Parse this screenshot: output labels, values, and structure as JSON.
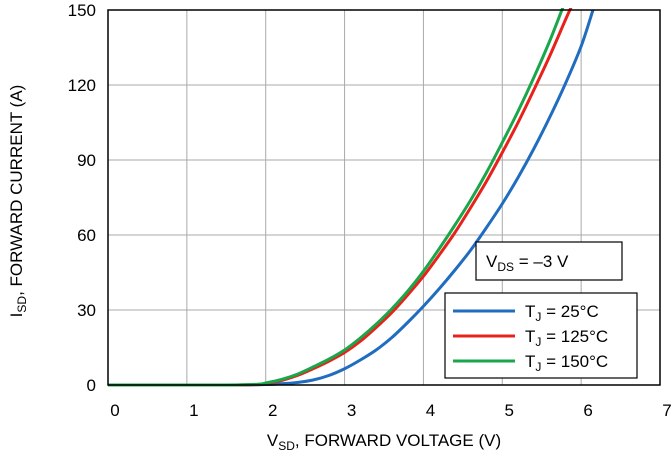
{
  "chart_data": {
    "type": "line",
    "title": "",
    "xlabel": {
      "main": "V",
      "sub": "SD",
      "rest": ", FORWARD VOLTAGE (V)"
    },
    "ylabel": {
      "main": "I",
      "sub": "SD",
      "rest": ", FORWARD CURRENT (A)"
    },
    "xlim": [
      0,
      7
    ],
    "ylim": [
      0,
      150
    ],
    "xticks": [
      0,
      1,
      2,
      3,
      4,
      5,
      6,
      7
    ],
    "yticks": [
      0,
      30,
      60,
      90,
      120,
      150
    ],
    "grid": true,
    "annotation": {
      "main": "V",
      "sub": "DS",
      "rest": " =  –3 V"
    },
    "legend_position": "bottom-right",
    "series": [
      {
        "label": {
          "main": "T",
          "sub": "J",
          "rest": " = 25°C"
        },
        "color": "#1f6cc0",
        "x": [
          0,
          1.5,
          2.0,
          2.2,
          2.4,
          2.6,
          2.8,
          3.0,
          3.2,
          3.4,
          3.6,
          3.8,
          4.0,
          4.2,
          4.4,
          4.6,
          4.8,
          5.0,
          5.2,
          5.4,
          5.6,
          5.8,
          6.0,
          6.15
        ],
        "y": [
          0,
          0,
          0.2,
          0.5,
          1.0,
          2.0,
          3.8,
          6.5,
          10,
          14,
          19,
          25,
          31.5,
          38.5,
          46,
          54,
          63,
          72.5,
          83,
          94.5,
          107,
          120.5,
          135.5,
          150
        ]
      },
      {
        "label": {
          "main": "T",
          "sub": "J",
          "rest": " = 125°C"
        },
        "color": "#e8221b",
        "x": [
          0,
          1.5,
          1.9,
          2.0,
          2.2,
          2.4,
          2.6,
          2.8,
          3.0,
          3.2,
          3.4,
          3.6,
          3.8,
          4.0,
          4.2,
          4.4,
          4.6,
          4.8,
          5.0,
          5.2,
          5.4,
          5.6,
          5.8,
          5.9
        ],
        "y": [
          0,
          0,
          0.2,
          0.6,
          1.8,
          3.8,
          6.5,
          9.5,
          13,
          17.5,
          23,
          29,
          36,
          43.5,
          52,
          61,
          71,
          81.5,
          93,
          105,
          118,
          131.5,
          146,
          153
        ]
      },
      {
        "label": {
          "main": "T",
          "sub": "J",
          "rest": " = 150°C"
        },
        "color": "#1aa64b",
        "x": [
          0,
          1.5,
          1.9,
          2.0,
          2.2,
          2.4,
          2.6,
          2.8,
          3.0,
          3.2,
          3.4,
          3.6,
          3.8,
          4.0,
          4.2,
          4.4,
          4.6,
          4.8,
          5.0,
          5.2,
          5.4,
          5.6,
          5.78
        ],
        "y": [
          0,
          0,
          0.3,
          0.8,
          2.2,
          4.3,
          7.2,
          10.3,
          14,
          18.8,
          24.3,
          30.5,
          37.5,
          45.5,
          54.5,
          64,
          74,
          85,
          97,
          109.5,
          123,
          137.5,
          152
        ]
      }
    ]
  }
}
